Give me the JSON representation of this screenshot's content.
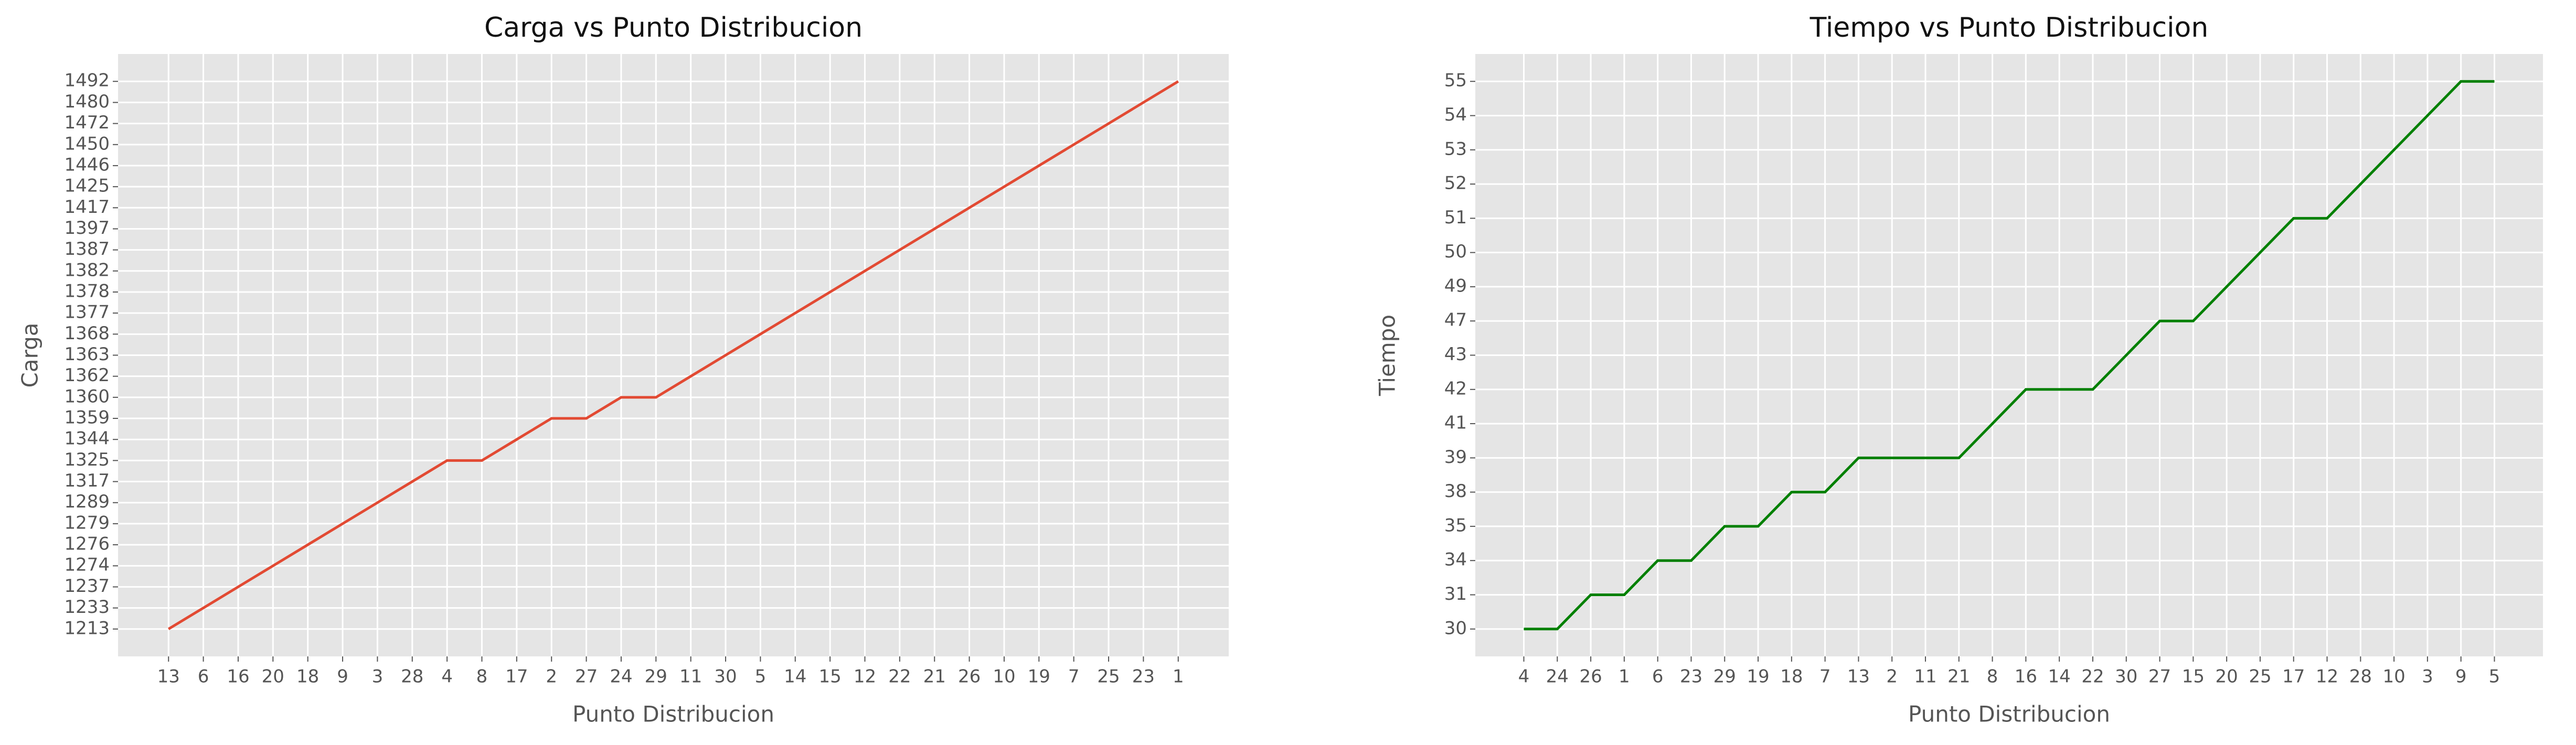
{
  "chart_data": [
    {
      "type": "line",
      "title": "Carga vs Punto Distribucion",
      "x_label": "Punto Distribucion",
      "y_label": "Carga",
      "categories": [
        "13",
        "6",
        "16",
        "20",
        "18",
        "9",
        "3",
        "28",
        "4",
        "8",
        "17",
        "2",
        "27",
        "24",
        "29",
        "11",
        "30",
        "5",
        "14",
        "15",
        "12",
        "22",
        "21",
        "26",
        "10",
        "19",
        "7",
        "25",
        "23",
        "1"
      ],
      "values": [
        1213,
        1233,
        1237,
        1274,
        1276,
        1279,
        1289,
        1317,
        1325,
        1325,
        1344,
        1359,
        1359,
        1360,
        1360,
        1362,
        1363,
        1368,
        1377,
        1378,
        1382,
        1387,
        1397,
        1417,
        1425,
        1446,
        1450,
        1472,
        1480,
        1492
      ],
      "yticks": [
        1213,
        1233,
        1237,
        1274,
        1276,
        1279,
        1289,
        1317,
        1325,
        1344,
        1359,
        1360,
        1362,
        1363,
        1368,
        1377,
        1378,
        1382,
        1387,
        1397,
        1417,
        1425,
        1446,
        1450,
        1472,
        1480,
        1492
      ],
      "y_scale": "categorical",
      "color": "#E24A33",
      "grid": true
    },
    {
      "type": "line",
      "title": "Tiempo vs Punto Distribucion",
      "x_label": "Punto Distribucion",
      "y_label": "Tiempo",
      "categories": [
        "4",
        "24",
        "26",
        "1",
        "6",
        "23",
        "29",
        "19",
        "18",
        "7",
        "13",
        "2",
        "11",
        "21",
        "8",
        "16",
        "14",
        "22",
        "30",
        "27",
        "15",
        "20",
        "25",
        "17",
        "12",
        "28",
        "10",
        "3",
        "9",
        "5"
      ],
      "values": [
        30,
        30,
        31,
        31,
        34,
        34,
        35,
        35,
        38,
        38,
        39,
        39,
        39,
        39,
        41,
        42,
        42,
        42,
        43,
        47,
        47,
        49,
        50,
        51,
        51,
        52,
        53,
        54,
        55,
        55
      ],
      "yticks": [
        30,
        31,
        34,
        35,
        38,
        39,
        41,
        42,
        43,
        47,
        49,
        50,
        51,
        52,
        53,
        54,
        55
      ],
      "y_scale": "categorical",
      "color": "#008000",
      "grid": true
    }
  ]
}
